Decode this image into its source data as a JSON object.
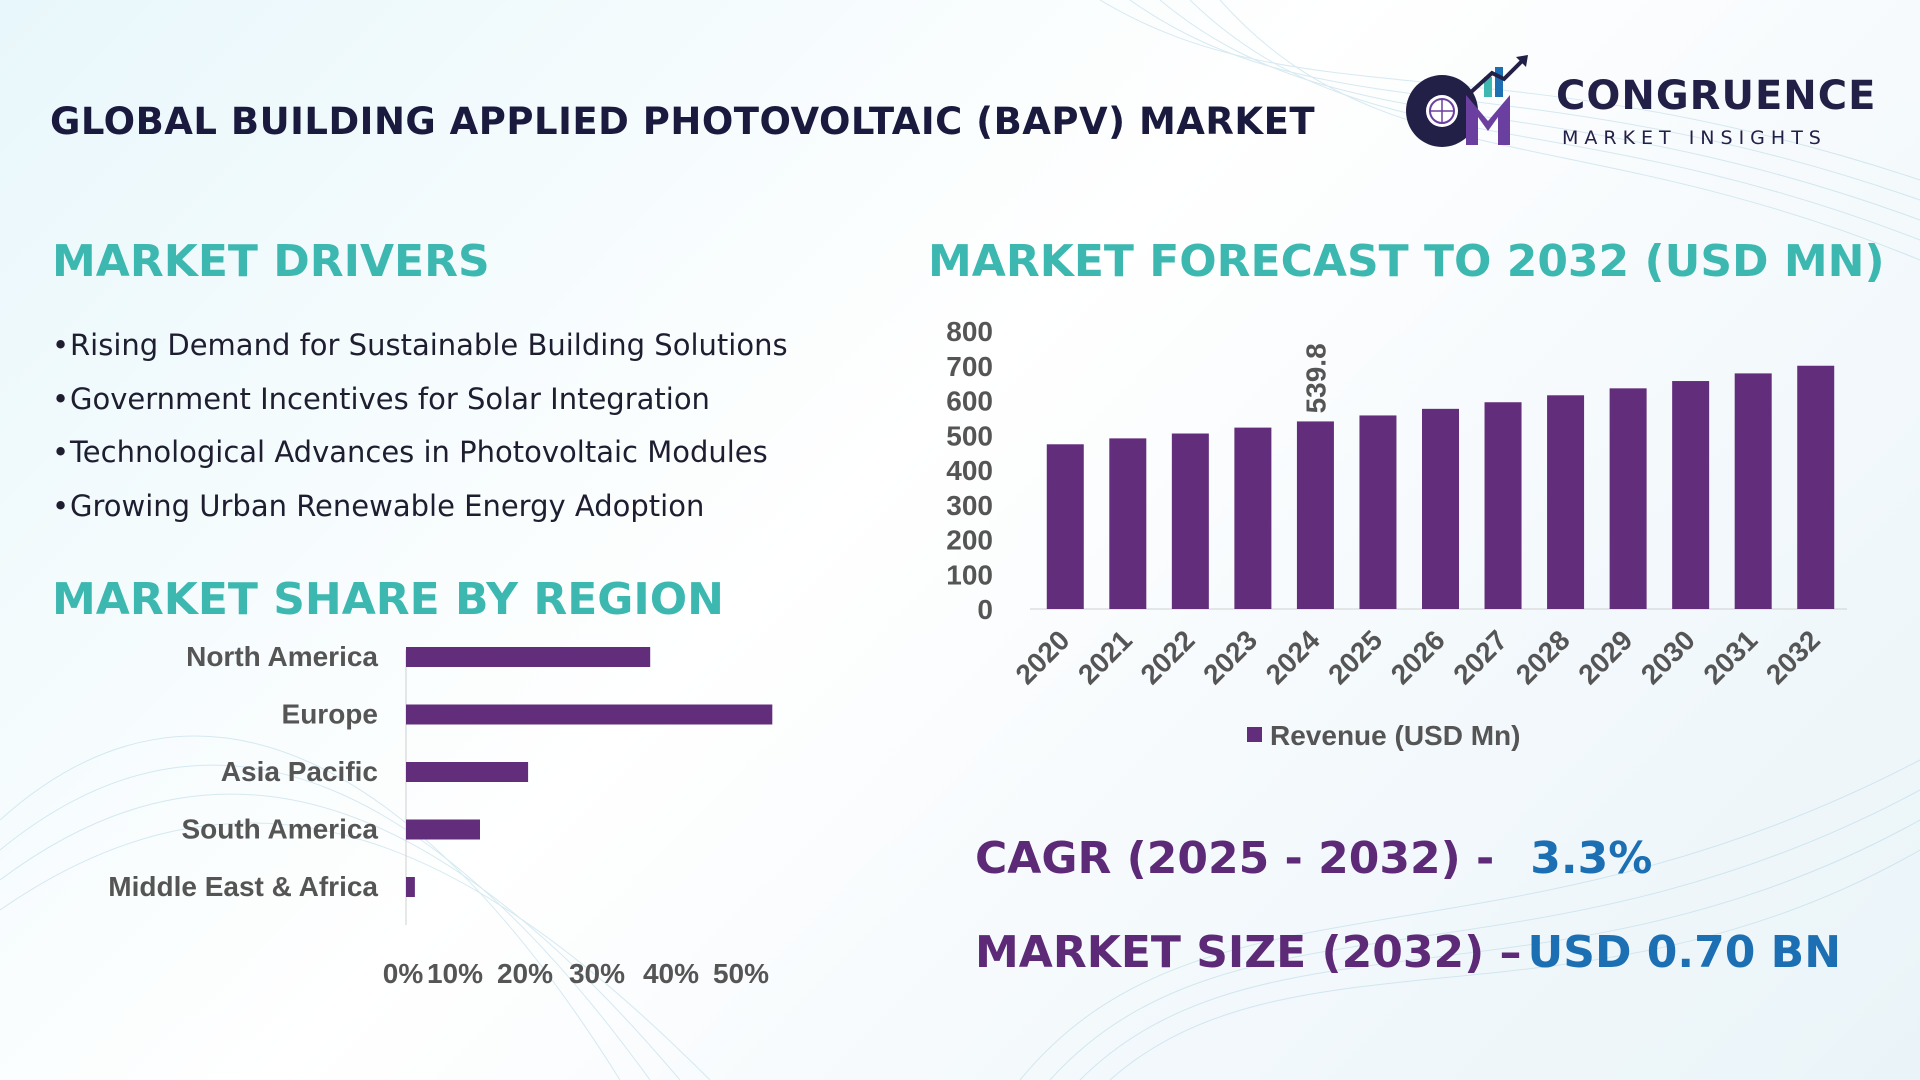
{
  "header": {
    "title": "GLOBAL BUILDING APPLIED PHOTOVOLTAIC (BAPV) MARKET",
    "logo_name": "CONGRUENCE",
    "logo_sub": "MARKET INSIGHTS"
  },
  "drivers": {
    "title": "MARKET DRIVERS",
    "bullet": "•",
    "items": [
      "Rising Demand for Sustainable Building Solutions",
      "Government Incentives for Solar Integration",
      "Technological Advances in Photovoltaic Modules",
      "Growing Urban Renewable Energy Adoption"
    ]
  },
  "region": {
    "title": "MARKET SHARE BY REGION"
  },
  "forecast": {
    "title": "MARKET FORECAST TO 2032 (USD MN)"
  },
  "stats": {
    "cagr_label": "CAGR (2025 - 2032) -",
    "cagr_value": "3.3%",
    "size_label": "MARKET SIZE (2032) –",
    "size_value": "USD 0.70 BN"
  },
  "colors": {
    "accent_teal": "#3db8b1",
    "bar_purple": "#622d7b",
    "value_blue": "#1c6fb3",
    "stat_purple": "#5d2a77"
  },
  "chart_data": [
    {
      "type": "bar",
      "orientation": "horizontal",
      "categories": [
        "North America",
        "Europe",
        "Asia Pacific",
        "South America",
        "Middle East & Africa"
      ],
      "values": [
        33,
        49.5,
        16.5,
        10,
        1.2
      ],
      "xlim": [
        0,
        50
      ],
      "xticks": [
        "0%",
        "10%",
        "20%",
        "30%",
        "40%",
        "50%"
      ],
      "color": "#622d7b"
    },
    {
      "type": "bar",
      "categories": [
        "2020",
        "2021",
        "2022",
        "2023",
        "2024",
        "2025",
        "2026",
        "2027",
        "2028",
        "2029",
        "2030",
        "2031",
        "2032"
      ],
      "values": [
        474,
        491,
        505,
        522,
        539.8,
        557,
        576,
        595,
        615,
        635,
        656,
        678,
        700
      ],
      "ylim": [
        0,
        800
      ],
      "yticks": [
        "0",
        "100",
        "200",
        "300",
        "400",
        "500",
        "600",
        "700",
        "800"
      ],
      "data_labels": [
        {
          "category": "2024",
          "text": "539.8"
        }
      ],
      "series": [
        {
          "name": "Revenue (USD Mn)"
        }
      ],
      "legend": "bottom",
      "color": "#622d7b"
    }
  ]
}
